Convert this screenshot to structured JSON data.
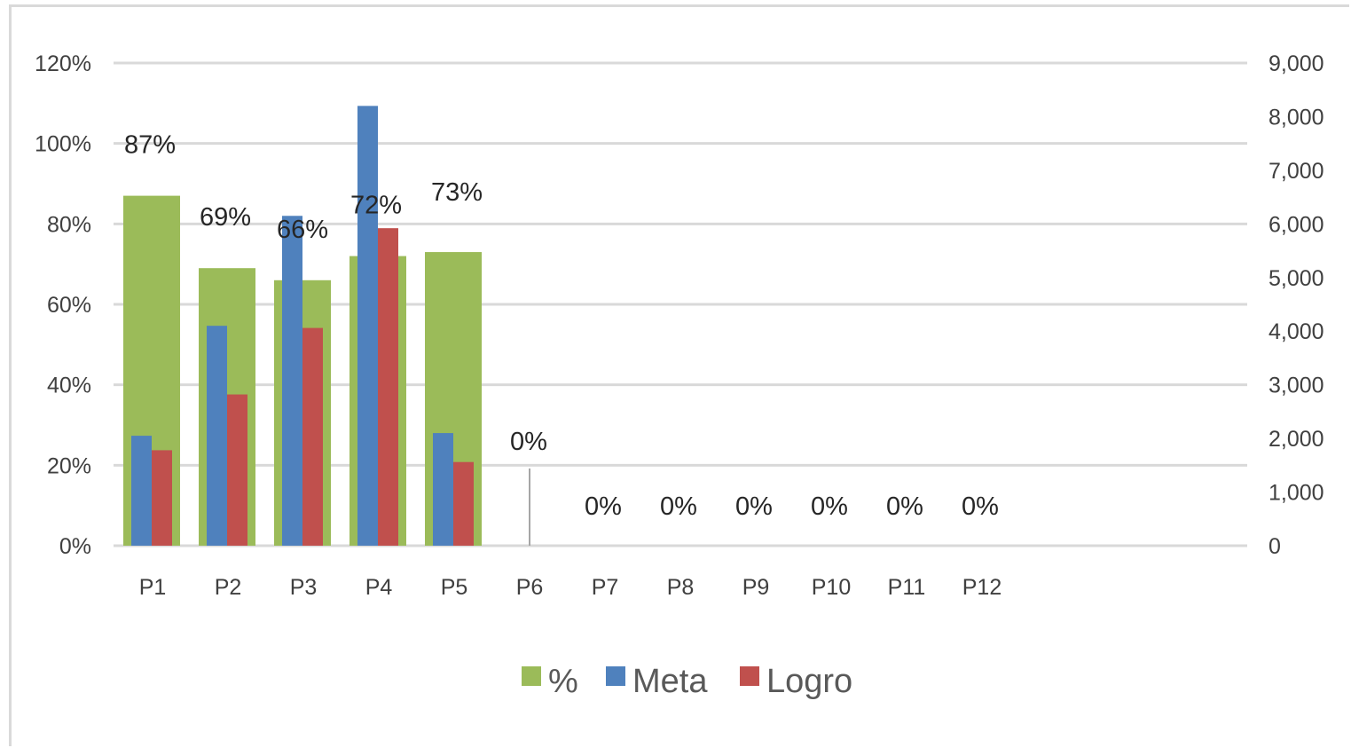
{
  "chart_data": {
    "type": "bar",
    "categories": [
      "P1",
      "P2",
      "P3",
      "P4",
      "P5",
      "P6",
      "P7",
      "P8",
      "P9",
      "P10",
      "P11",
      "P12"
    ],
    "series": [
      {
        "name": "%",
        "axis": "left",
        "values": [
          0.87,
          0.69,
          0.66,
          0.72,
          0.73,
          0,
          0,
          0,
          0,
          0,
          0,
          0
        ],
        "color": "#9bbb59",
        "data_labels": [
          "87%",
          "69%",
          "66%",
          "72%",
          "73%",
          "0%",
          "0%",
          "0%",
          "0%",
          "0%",
          "0%",
          "0%"
        ]
      },
      {
        "name": "Meta",
        "axis": "right",
        "values": [
          2050,
          4100,
          6150,
          8200,
          2100,
          0,
          0,
          0,
          0,
          0,
          0,
          0
        ],
        "color": "#4f81bd"
      },
      {
        "name": "Logro",
        "axis": "right",
        "values": [
          1780,
          2820,
          4060,
          5920,
          1560,
          0,
          0,
          0,
          0,
          0,
          0,
          0
        ],
        "color": "#c0504d"
      }
    ],
    "left_axis": {
      "ylim": [
        0,
        1.2
      ],
      "ticks": [
        "0%",
        "20%",
        "40%",
        "60%",
        "80%",
        "100%",
        "120%"
      ]
    },
    "right_axis": {
      "ylim": [
        0,
        9000
      ],
      "ticks": [
        "0",
        "1,000",
        "2,000",
        "3,000",
        "4,000",
        "5,000",
        "6,000",
        "7,000",
        "8,000",
        "9,000"
      ]
    },
    "grid": true,
    "legend": {
      "position": "bottom",
      "entries": [
        "%",
        "Meta",
        "Logro"
      ]
    }
  }
}
